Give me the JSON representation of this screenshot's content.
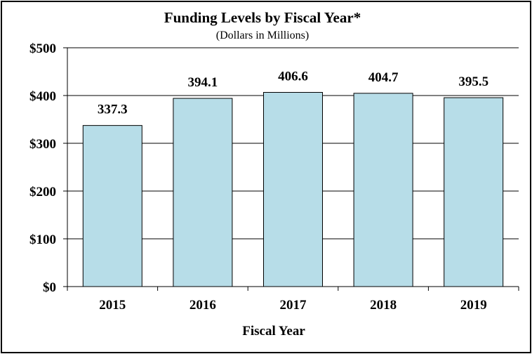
{
  "chart_data": {
    "type": "bar",
    "title": "Funding Levels by Fiscal Year*",
    "subtitle": "(Dollars in Millions)",
    "xlabel": "Fiscal Year",
    "ylabel": "",
    "categories": [
      "2015",
      "2016",
      "2017",
      "2018",
      "2019"
    ],
    "values": [
      337.3,
      394.1,
      406.6,
      404.7,
      395.5
    ],
    "data_labels": [
      "337.3",
      "394.1",
      "406.6",
      "404.7",
      "395.5"
    ],
    "ylim": [
      0,
      500
    ],
    "yticks": [
      0,
      100,
      200,
      300,
      400,
      500
    ],
    "ytick_labels": [
      "$0",
      "$100",
      "$200",
      "$300",
      "$400",
      "$500"
    ],
    "grid": true,
    "legend": "none",
    "bar_color": "#b7dde8"
  }
}
